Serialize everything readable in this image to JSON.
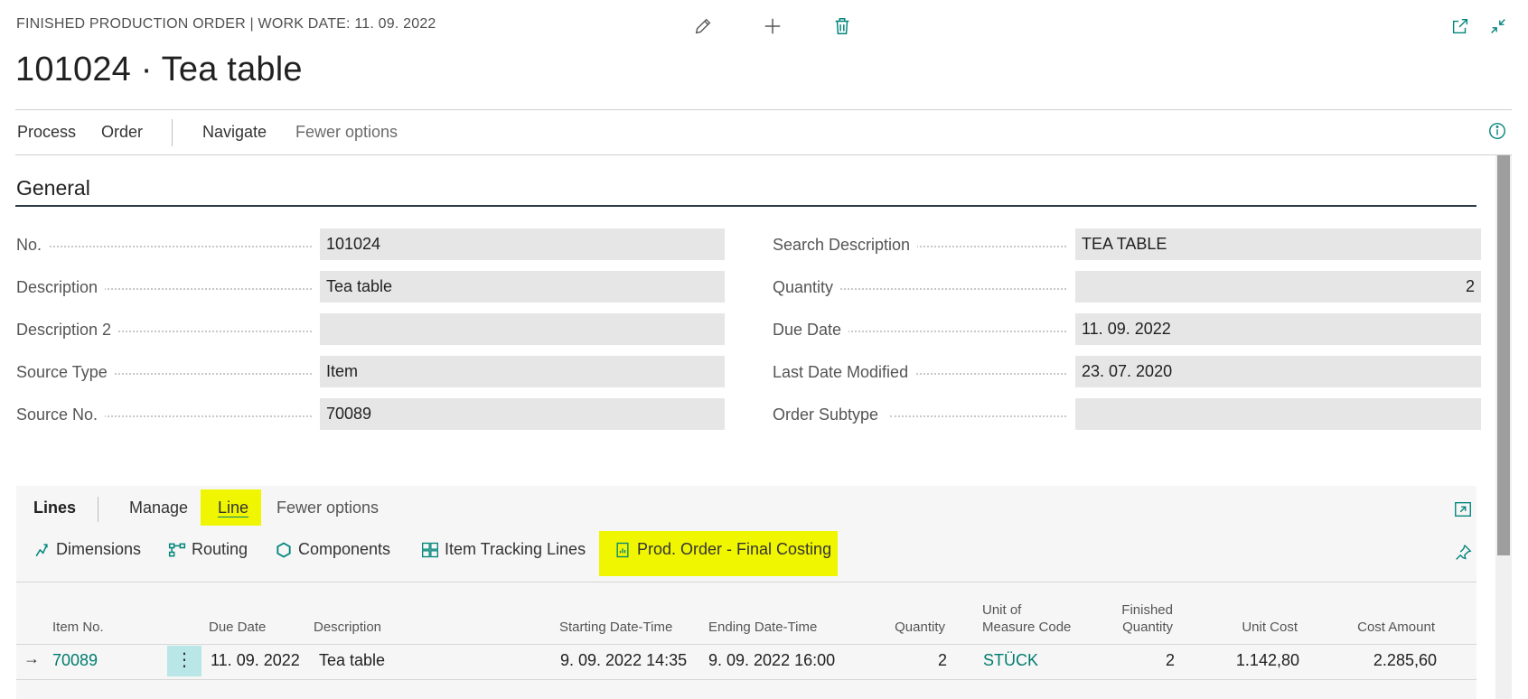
{
  "header": {
    "caption": "FINISHED PRODUCTION ORDER | WORK DATE: 11. 09. 2022",
    "title": "101024 · Tea table"
  },
  "top_actions": {
    "edit_icon": "pencil-icon",
    "add_icon": "plus-icon",
    "delete_icon": "trash-icon",
    "open_new_icon": "open-in-new-window-icon",
    "collapse_icon": "collapse-icon"
  },
  "actionbar": {
    "process": "Process",
    "order": "Order",
    "navigate": "Navigate",
    "fewer_options": "Fewer options"
  },
  "general": {
    "title": "General",
    "left_fields": [
      {
        "label": "No.",
        "value": "101024"
      },
      {
        "label": "Description",
        "value": "Tea table"
      },
      {
        "label": "Description 2",
        "value": ""
      },
      {
        "label": "Source Type",
        "value": "Item"
      },
      {
        "label": "Source No.",
        "value": "70089"
      }
    ],
    "right_fields": [
      {
        "label": "Search Description",
        "value": "TEA TABLE"
      },
      {
        "label": "Quantity",
        "value": "2"
      },
      {
        "label": "Due Date",
        "value": "11. 09. 2022"
      },
      {
        "label": "Last Date Modified",
        "value": "23. 07. 2020"
      },
      {
        "label": "Order Subtype",
        "value": ""
      }
    ]
  },
  "lines": {
    "tabs": {
      "lines": "Lines",
      "manage": "Manage",
      "line": "Line",
      "fewer_options": "Fewer options"
    },
    "actions": {
      "dimensions": "Dimensions",
      "routing": "Routing",
      "components": "Components",
      "item_tracking": "Item Tracking Lines",
      "final_costing": "Prod. Order - Final Costing"
    },
    "highlight_color": "#f0f500",
    "columns": {
      "item_no": "Item No.",
      "due_date": "Due Date",
      "description": "Description",
      "starting": "Starting Date-Time",
      "ending": "Ending Date-Time",
      "quantity": "Quantity",
      "uom_1": "Unit of",
      "uom_2": "Measure Code",
      "finished_1": "Finished",
      "finished_2": "Quantity",
      "unit_cost": "Unit Cost",
      "cost_amount": "Cost Amount"
    },
    "rows": [
      {
        "item_no": "70089",
        "due_date": "11. 09. 2022",
        "description": "Tea table",
        "starting": "9. 09. 2022 14:35",
        "ending": "9. 09. 2022 16:00",
        "quantity": "2",
        "uom": "STÜCK",
        "finished": "2",
        "unit_cost": "1.142,80",
        "cost_amount": "2.285,60"
      }
    ]
  }
}
